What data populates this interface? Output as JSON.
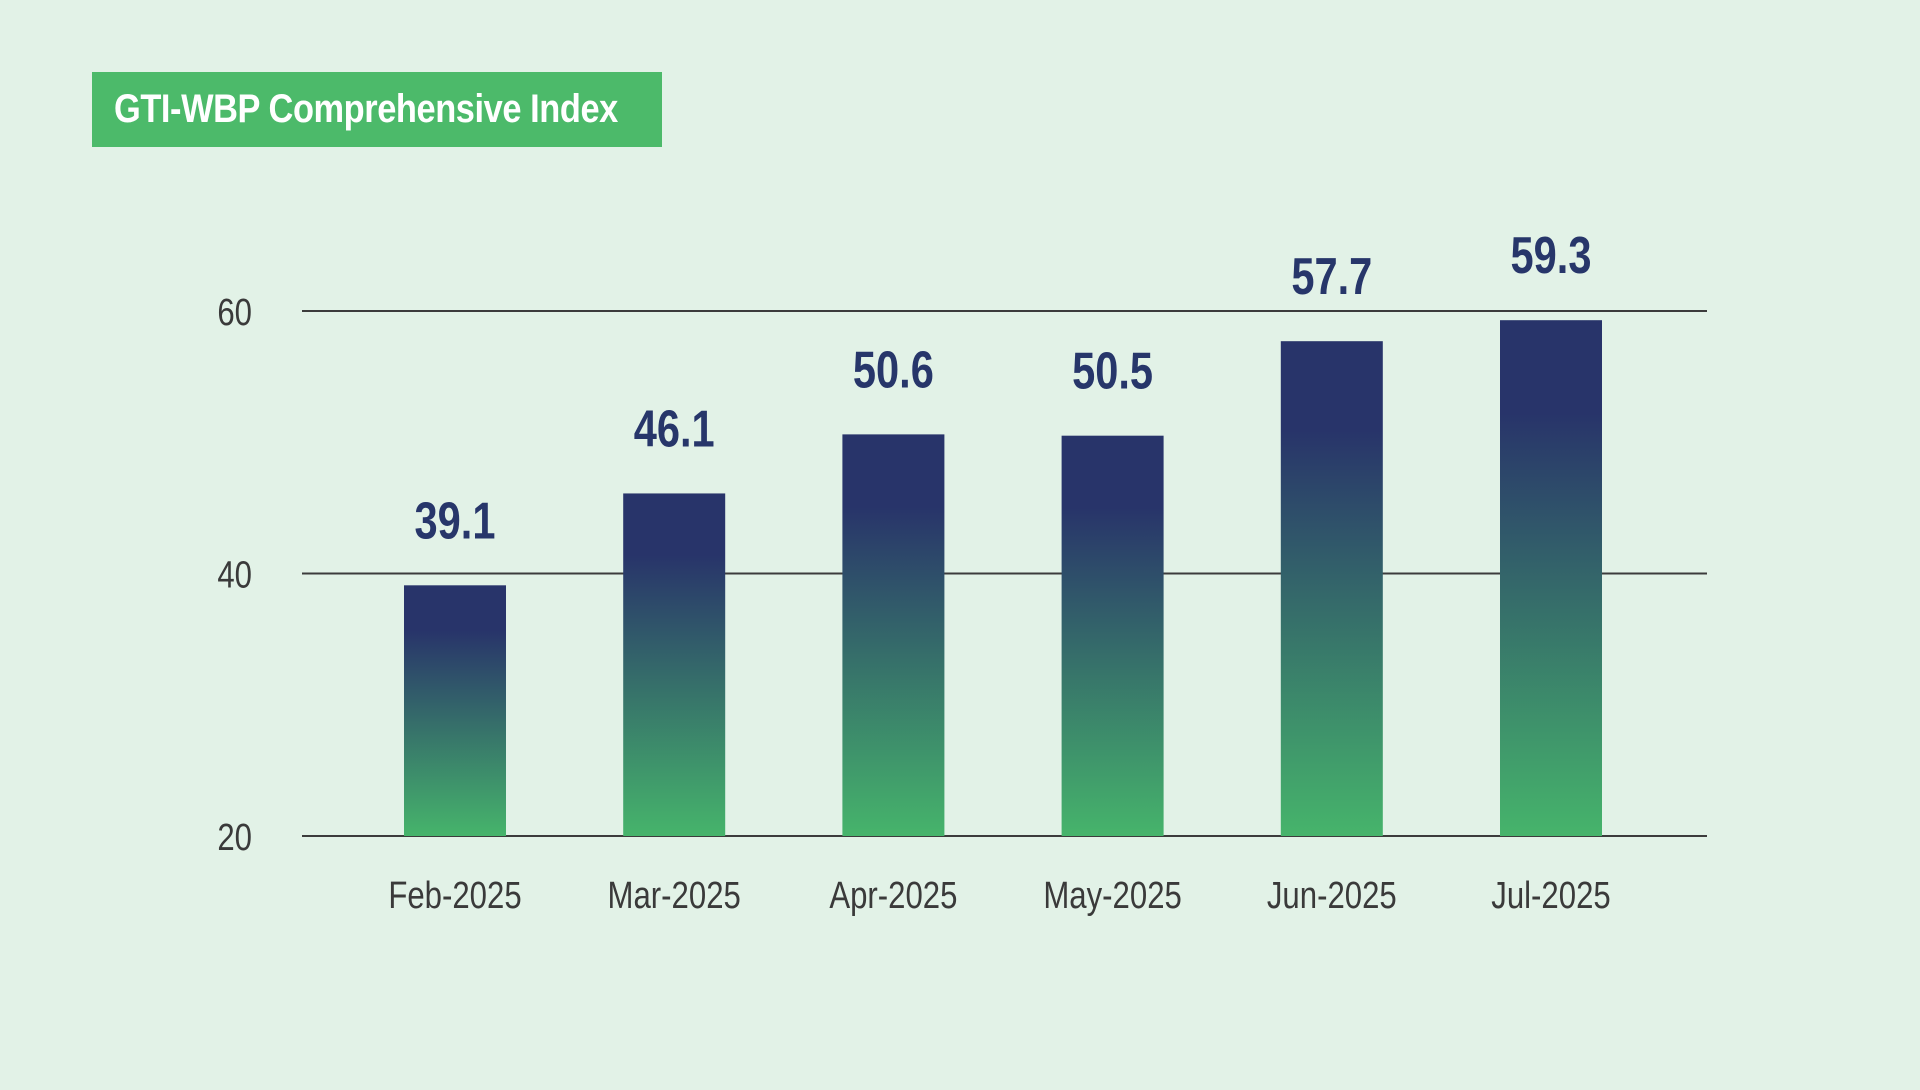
{
  "title": "GTI-WBP Comprehensive Index",
  "colors": {
    "background": "#e2f2e7",
    "title_badge": "#4cba6a",
    "bar_top": "#28346a",
    "bar_bottom": "#46b46b",
    "value_label": "#27366a",
    "grid": "#3c3c3c"
  },
  "chart_data": {
    "type": "bar",
    "title": "GTI-WBP Comprehensive Index",
    "categories": [
      "Feb-2025",
      "Mar-2025",
      "Apr-2025",
      "May-2025",
      "Jun-2025",
      "Jul-2025"
    ],
    "values": [
      39.1,
      46.1,
      50.6,
      50.5,
      57.7,
      59.3
    ],
    "value_labels": [
      "39.1",
      "46.1",
      "50.6",
      "50.5",
      "57.7",
      "59.3"
    ],
    "xlabel": "",
    "ylabel": "",
    "ylim": [
      20,
      60
    ],
    "yticks": [
      20,
      40,
      60
    ],
    "grid": true,
    "legend": "none"
  }
}
